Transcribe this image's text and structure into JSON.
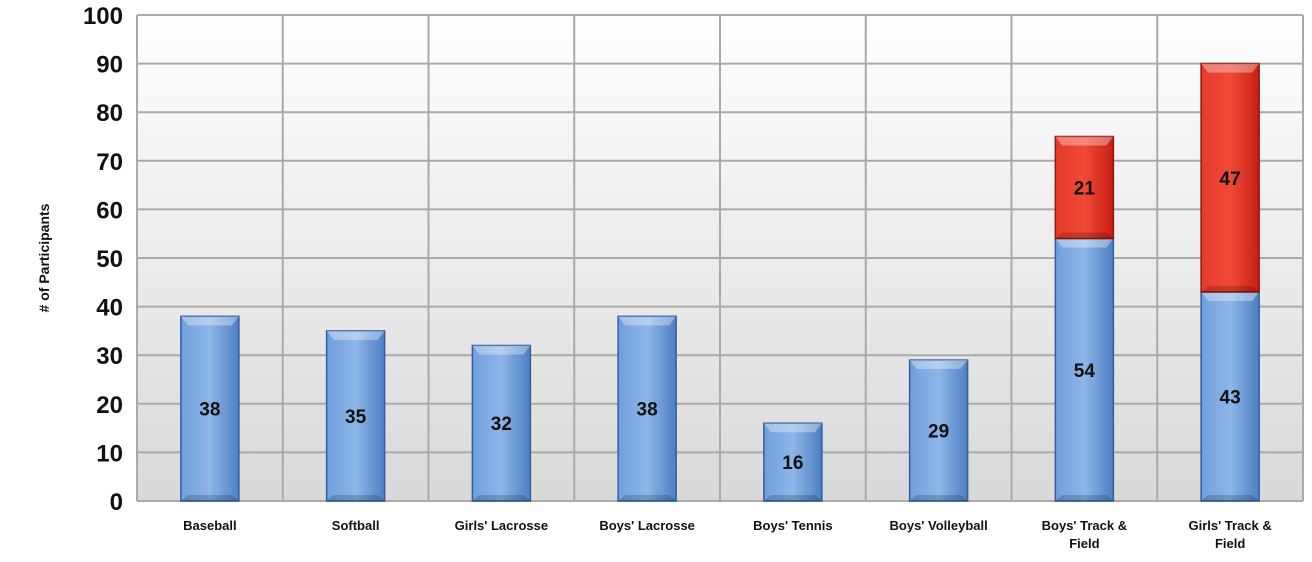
{
  "chart_data": {
    "type": "bar",
    "stacked": true,
    "title": "",
    "xlabel": "",
    "ylabel": "# of Participants",
    "ylim": [
      0,
      100
    ],
    "yticks": [
      0,
      10,
      20,
      30,
      40,
      50,
      60,
      70,
      80,
      90,
      100
    ],
    "grid": true,
    "categories": [
      [
        "Baseball"
      ],
      [
        "Softball"
      ],
      [
        "Girls' Lacrosse"
      ],
      [
        "Boys' Lacrosse"
      ],
      [
        "Boys' Tennis"
      ],
      [
        "Boys' Volleyball"
      ],
      [
        "Boys' Track &",
        "Field"
      ],
      [
        "Girls' Track &",
        "Field"
      ]
    ],
    "series": [
      {
        "values": [
          38,
          35,
          32,
          38,
          16,
          29,
          54,
          43
        ],
        "color": "#5b8fd1"
      },
      {
        "values": [
          0,
          0,
          0,
          0,
          0,
          0,
          21,
          47
        ],
        "color": "#e0261b"
      }
    ],
    "colors": {
      "grid": "#aaaaaa",
      "plot_bg_top": "#ffffff",
      "plot_bg_bottom": "#d9d9d9"
    }
  }
}
